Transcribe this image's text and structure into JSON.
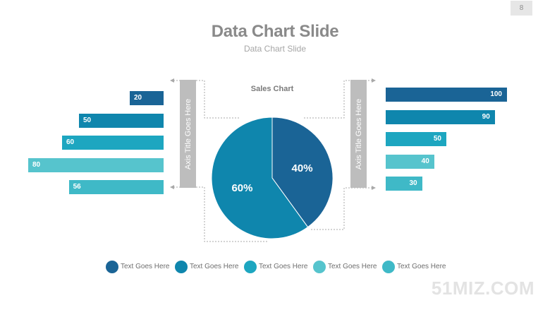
{
  "slide": {
    "page_number": "8",
    "title": "Data Chart Slide",
    "subtitle": "Data Chart Slide",
    "watermark": "51MIZ.COM"
  },
  "colors": {
    "dark_blue": "#1a6496",
    "blue": "#0f86ad",
    "teal": "#1da6c0",
    "light_teal": "#56c4cd",
    "aqua": "#3fb9c7",
    "axis_box": "#bdbdbd"
  },
  "chart_data": [
    {
      "type": "bar",
      "orientation": "horizontal",
      "direction": "right-to-left",
      "values": [
        20,
        50,
        60,
        80,
        56
      ],
      "labels": [
        "20",
        "50",
        "60",
        "80",
        "56"
      ],
      "colors": [
        "#1a6496",
        "#0f86ad",
        "#1da6c0",
        "#56c4cd",
        "#3fb9c7"
      ],
      "xlim": [
        0,
        100
      ],
      "axis_title": "Axis Title Goes Here"
    },
    {
      "type": "pie",
      "title": "Sales Chart",
      "slices": [
        {
          "value": 40,
          "label": "40%",
          "color": "#1a6496"
        },
        {
          "value": 60,
          "label": "60%",
          "color": "#0f86ad"
        }
      ]
    },
    {
      "type": "bar",
      "orientation": "horizontal",
      "direction": "left-to-right",
      "values": [
        100,
        90,
        50,
        40,
        30
      ],
      "labels": [
        "100",
        "90",
        "50",
        "40",
        "30"
      ],
      "colors": [
        "#1a6496",
        "#0f86ad",
        "#1da6c0",
        "#56c4cd",
        "#3fb9c7"
      ],
      "xlim": [
        0,
        100
      ],
      "axis_title": "Axis Title Goes Here"
    }
  ],
  "legend": [
    {
      "label": "Text Goes Here",
      "color": "#1a6496"
    },
    {
      "label": "Text Goes Here",
      "color": "#0f86ad"
    },
    {
      "label": "Text Goes Here",
      "color": "#1da6c0"
    },
    {
      "label": "Text Goes Here",
      "color": "#56c4cd"
    },
    {
      "label": "Text Goes Here",
      "color": "#3fb9c7"
    }
  ]
}
